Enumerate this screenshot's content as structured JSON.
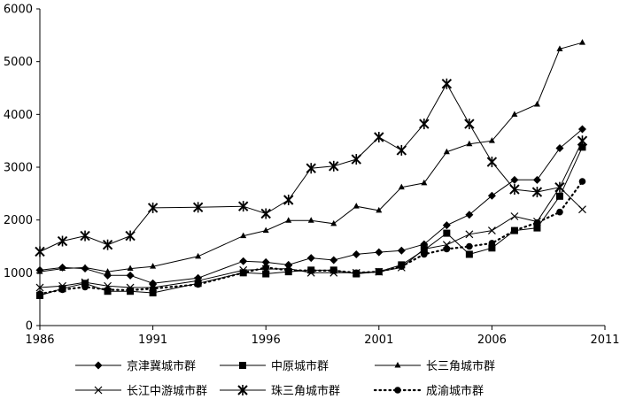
{
  "chart_data": {
    "type": "line",
    "title": "",
    "xlabel": "",
    "ylabel": "",
    "xlim": [
      1986,
      2011
    ],
    "ylim": [
      0,
      6000
    ],
    "x_ticks": [
      1986,
      1991,
      1996,
      2001,
      2006,
      2011
    ],
    "y_ticks": [
      0,
      1000,
      2000,
      3000,
      4000,
      5000,
      6000
    ],
    "x_tick_labels": [
      "1986",
      "1991",
      "1996",
      "2001",
      "2006",
      "2011"
    ],
    "y_tick_labels": [
      "0",
      "1000",
      "2000",
      "3000",
      "4000",
      "5000",
      "6000"
    ],
    "grid": false,
    "legend_position": "bottom",
    "series": [
      {
        "name": "京津冀城市群",
        "marker": "diamond",
        "line_style": "solid",
        "color": "#000000",
        "points": [
          [
            1986,
            1050
          ],
          [
            1987,
            1100
          ],
          [
            1988,
            1080
          ],
          [
            1989,
            950
          ],
          [
            1990,
            950
          ],
          [
            1991,
            800
          ],
          [
            1993,
            900
          ],
          [
            1995,
            1220
          ],
          [
            1996,
            1200
          ],
          [
            1997,
            1150
          ],
          [
            1998,
            1280
          ],
          [
            1999,
            1240
          ],
          [
            2000,
            1350
          ],
          [
            2001,
            1390
          ],
          [
            2002,
            1420
          ],
          [
            2003,
            1540
          ],
          [
            2004,
            1900
          ],
          [
            2005,
            2100
          ],
          [
            2006,
            2460
          ],
          [
            2007,
            2760
          ],
          [
            2008,
            2760
          ],
          [
            2009,
            3360
          ],
          [
            2010,
            3720
          ]
        ]
      },
      {
        "name": "中原城市群",
        "marker": "square",
        "line_style": "solid",
        "color": "#000000",
        "points": [
          [
            1986,
            570
          ],
          [
            1987,
            700
          ],
          [
            1988,
            800
          ],
          [
            1989,
            650
          ],
          [
            1990,
            650
          ],
          [
            1991,
            620
          ],
          [
            1993,
            800
          ],
          [
            1995,
            1000
          ],
          [
            1996,
            980
          ],
          [
            1997,
            1020
          ],
          [
            1998,
            1050
          ],
          [
            1999,
            1050
          ],
          [
            2000,
            980
          ],
          [
            2001,
            1020
          ],
          [
            2002,
            1150
          ],
          [
            2003,
            1430
          ],
          [
            2004,
            1750
          ],
          [
            2005,
            1350
          ],
          [
            2006,
            1470
          ],
          [
            2007,
            1800
          ],
          [
            2008,
            1850
          ],
          [
            2009,
            2450
          ],
          [
            2010,
            3380
          ]
        ]
      },
      {
        "name": "长三角城市群",
        "marker": "triangle",
        "line_style": "solid",
        "color": "#000000",
        "points": [
          [
            1986,
            1020
          ],
          [
            1987,
            1080
          ],
          [
            1988,
            1100
          ],
          [
            1989,
            1020
          ],
          [
            1990,
            1080
          ],
          [
            1991,
            1120
          ],
          [
            1993,
            1310
          ],
          [
            1995,
            1700
          ],
          [
            1996,
            1800
          ],
          [
            1997,
            1990
          ],
          [
            1998,
            1990
          ],
          [
            1999,
            1930
          ],
          [
            2000,
            2260
          ],
          [
            2001,
            2180
          ],
          [
            2002,
            2620
          ],
          [
            2003,
            2700
          ],
          [
            2004,
            3290
          ],
          [
            2005,
            3440
          ],
          [
            2006,
            3500
          ],
          [
            2007,
            4000
          ],
          [
            2008,
            4190
          ],
          [
            2009,
            5240
          ],
          [
            2010,
            5360
          ]
        ]
      },
      {
        "name": "长江中游城市群",
        "marker": "x",
        "line_style": "solid",
        "color": "#000000",
        "points": [
          [
            1986,
            720
          ],
          [
            1987,
            750
          ],
          [
            1988,
            820
          ],
          [
            1989,
            750
          ],
          [
            1990,
            720
          ],
          [
            1991,
            720
          ],
          [
            1993,
            850
          ],
          [
            1995,
            1050
          ],
          [
            1996,
            1070
          ],
          [
            1997,
            1080
          ],
          [
            1998,
            1000
          ],
          [
            1999,
            1000
          ],
          [
            2000,
            1000
          ],
          [
            2001,
            1020
          ],
          [
            2002,
            1100
          ],
          [
            2003,
            1450
          ],
          [
            2004,
            1530
          ],
          [
            2005,
            1730
          ],
          [
            2006,
            1800
          ],
          [
            2007,
            2070
          ],
          [
            2008,
            1970
          ],
          [
            2009,
            2620
          ],
          [
            2010,
            2200
          ]
        ]
      },
      {
        "name": "珠三角城市群",
        "marker": "star",
        "line_style": "solid",
        "color": "#000000",
        "points": [
          [
            1986,
            1400
          ],
          [
            1987,
            1600
          ],
          [
            1988,
            1700
          ],
          [
            1989,
            1530
          ],
          [
            1990,
            1700
          ],
          [
            1991,
            2230
          ],
          [
            1993,
            2240
          ],
          [
            1995,
            2260
          ],
          [
            1996,
            2120
          ],
          [
            1997,
            2380
          ],
          [
            1998,
            2980
          ],
          [
            1999,
            3020
          ],
          [
            2000,
            3150
          ],
          [
            2001,
            3570
          ],
          [
            2002,
            3320
          ],
          [
            2003,
            3820
          ],
          [
            2004,
            4580
          ],
          [
            2005,
            3820
          ],
          [
            2006,
            3100
          ],
          [
            2007,
            2580
          ],
          [
            2008,
            2530
          ],
          [
            2009,
            2620
          ],
          [
            2010,
            3500
          ]
        ]
      },
      {
        "name": "成渝城市群",
        "marker": "circle",
        "line_style": "dotted",
        "color": "#000000",
        "points": [
          [
            1986,
            600
          ],
          [
            1987,
            680
          ],
          [
            1988,
            730
          ],
          [
            1989,
            680
          ],
          [
            1990,
            670
          ],
          [
            1991,
            700
          ],
          [
            1993,
            780
          ],
          [
            1995,
            1000
          ],
          [
            1996,
            1100
          ],
          [
            1997,
            1050
          ],
          [
            1998,
            1040
          ],
          [
            1999,
            1040
          ],
          [
            2000,
            1000
          ],
          [
            2001,
            1020
          ],
          [
            2002,
            1120
          ],
          [
            2003,
            1350
          ],
          [
            2004,
            1450
          ],
          [
            2005,
            1500
          ],
          [
            2006,
            1560
          ],
          [
            2007,
            1800
          ],
          [
            2008,
            1950
          ],
          [
            2009,
            2150
          ],
          [
            2010,
            2730
          ]
        ]
      }
    ]
  }
}
